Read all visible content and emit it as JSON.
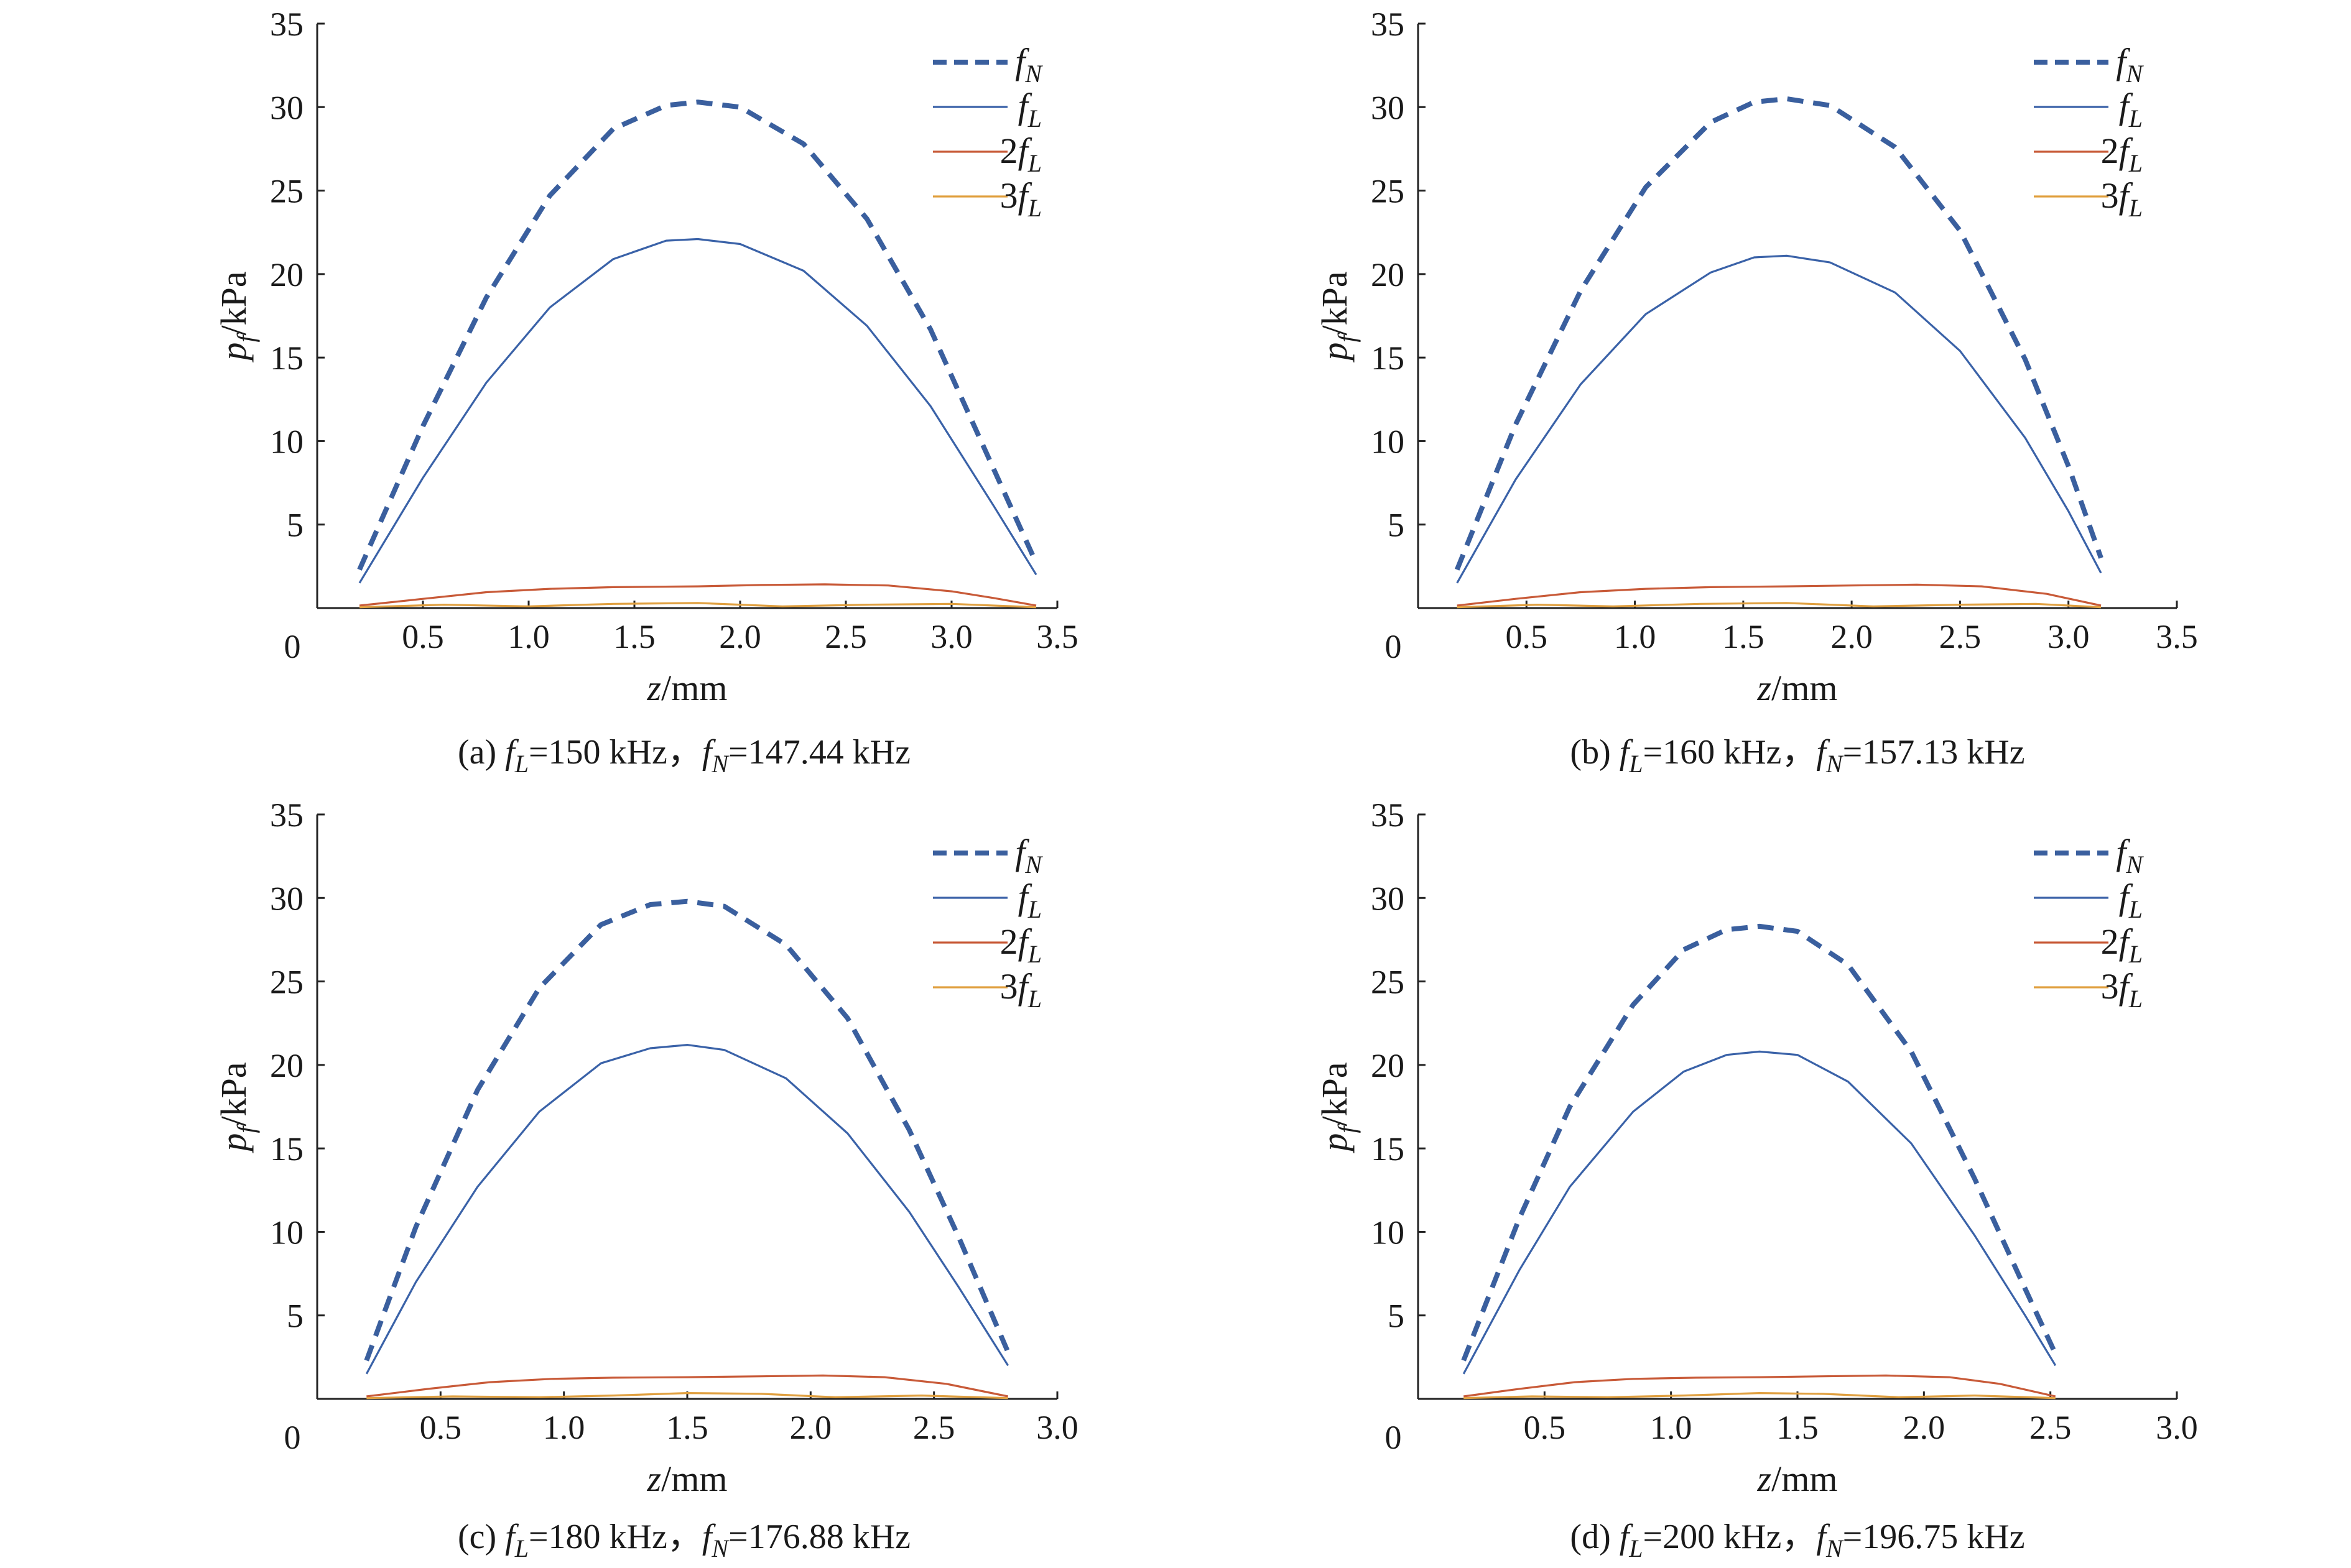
{
  "chart_data": [
    {
      "type": "line",
      "caption": "(a) f_L=150 kHz，f_N=147.44 kHz",
      "caption_parts": {
        "prefix": "(a) ",
        "fL_value": "=150 kHz，",
        "fN_value": "=147.44 kHz"
      },
      "ylabel": "p_f/kPa",
      "ylabel_parts": {
        "base": "p",
        "sub": "f",
        "unit": "/kPa"
      },
      "xlabel": "z/mm",
      "xlabel_parts": {
        "var": "z",
        "unit": "/mm"
      },
      "xlim": [
        0,
        3.5
      ],
      "ylim": [
        0,
        35
      ],
      "xticks": [
        "0.5",
        "1.0",
        "1.5",
        "2.0",
        "2.5",
        "3.0",
        "3.5"
      ],
      "yticks": [
        "5",
        "10",
        "15",
        "20",
        "25",
        "30",
        "35"
      ],
      "origin_label": "0",
      "legend": [
        "f_N",
        "f_L",
        "2f_L",
        "3f_L"
      ],
      "series": [
        {
          "name": "f_N",
          "style": "dashed",
          "color": "#3a5f9e",
          "x": [
            0.2,
            0.5,
            0.8,
            1.1,
            1.4,
            1.65,
            1.8,
            2.0,
            2.3,
            2.6,
            2.9,
            3.2,
            3.4
          ],
          "y": [
            2.3,
            10.9,
            18.6,
            24.7,
            28.7,
            30.1,
            30.3,
            30.0,
            27.8,
            23.3,
            16.7,
            8.3,
            2.7
          ]
        },
        {
          "name": "f_L",
          "style": "solid",
          "color": "#3a62a8",
          "x": [
            0.2,
            0.5,
            0.8,
            1.1,
            1.4,
            1.65,
            1.8,
            2.0,
            2.3,
            2.6,
            2.9,
            3.2,
            3.4
          ],
          "y": [
            1.5,
            7.8,
            13.5,
            18.0,
            20.9,
            22.0,
            22.1,
            21.8,
            20.2,
            16.9,
            12.1,
            6.1,
            2.0
          ]
        },
        {
          "name": "2f_L",
          "style": "solid",
          "color": "#c85a38",
          "x": [
            0.2,
            0.5,
            0.8,
            1.1,
            1.4,
            1.8,
            2.1,
            2.4,
            2.7,
            3.0,
            3.2,
            3.4
          ],
          "y": [
            0.15,
            0.55,
            0.95,
            1.15,
            1.25,
            1.3,
            1.38,
            1.42,
            1.35,
            1.0,
            0.6,
            0.15
          ]
        },
        {
          "name": "3f_L",
          "style": "solid",
          "color": "#e0a040",
          "x": [
            0.2,
            0.6,
            1.0,
            1.4,
            1.8,
            2.2,
            2.6,
            3.0,
            3.4
          ],
          "y": [
            0.05,
            0.2,
            0.1,
            0.25,
            0.3,
            0.1,
            0.2,
            0.25,
            0.05
          ]
        }
      ]
    },
    {
      "type": "line",
      "caption": "(b) f_L=160 kHz，f_N=157.13 kHz",
      "caption_parts": {
        "prefix": "(b) ",
        "fL_value": "=160 kHz，",
        "fN_value": "=157.13 kHz"
      },
      "ylabel": "p_f/kPa",
      "ylabel_parts": {
        "base": "p",
        "sub": "f",
        "unit": "/kPa"
      },
      "xlabel": "z/mm",
      "xlabel_parts": {
        "var": "z",
        "unit": "/mm"
      },
      "xlim": [
        0,
        3.5
      ],
      "ylim": [
        0,
        35
      ],
      "xticks": [
        "0.5",
        "1.0",
        "1.5",
        "2.0",
        "2.5",
        "3.0",
        "3.5"
      ],
      "yticks": [
        "5",
        "10",
        "15",
        "20",
        "25",
        "30",
        "35"
      ],
      "origin_label": "0",
      "legend": [
        "f_N",
        "f_L",
        "2f_L",
        "3f_L"
      ],
      "series": [
        {
          "name": "f_N",
          "style": "dashed",
          "color": "#3a5f9e",
          "x": [
            0.18,
            0.45,
            0.75,
            1.05,
            1.35,
            1.55,
            1.7,
            1.9,
            2.2,
            2.5,
            2.8,
            3.0,
            3.15
          ],
          "y": [
            2.3,
            11.0,
            19.0,
            25.2,
            29.1,
            30.3,
            30.5,
            30.1,
            27.6,
            22.6,
            14.9,
            8.5,
            3.0
          ]
        },
        {
          "name": "f_L",
          "style": "solid",
          "color": "#3a62a8",
          "x": [
            0.18,
            0.45,
            0.75,
            1.05,
            1.35,
            1.55,
            1.7,
            1.9,
            2.2,
            2.5,
            2.8,
            3.0,
            3.15
          ],
          "y": [
            1.5,
            7.7,
            13.4,
            17.6,
            20.1,
            21.0,
            21.1,
            20.7,
            18.9,
            15.4,
            10.2,
            5.8,
            2.1
          ]
        },
        {
          "name": "2f_L",
          "style": "solid",
          "color": "#c85a38",
          "x": [
            0.18,
            0.45,
            0.75,
            1.05,
            1.35,
            1.7,
            2.0,
            2.3,
            2.6,
            2.9,
            3.15
          ],
          "y": [
            0.15,
            0.55,
            0.95,
            1.15,
            1.25,
            1.3,
            1.35,
            1.4,
            1.3,
            0.85,
            0.15
          ]
        },
        {
          "name": "3f_L",
          "style": "solid",
          "color": "#e0a040",
          "x": [
            0.18,
            0.55,
            0.9,
            1.3,
            1.7,
            2.1,
            2.5,
            2.85,
            3.15
          ],
          "y": [
            0.05,
            0.2,
            0.1,
            0.25,
            0.3,
            0.1,
            0.2,
            0.25,
            0.05
          ]
        }
      ]
    },
    {
      "type": "line",
      "caption": "(c) f_L=180 kHz，f_N=176.88 kHz",
      "caption_parts": {
        "prefix": "(c) ",
        "fL_value": "=180 kHz，",
        "fN_value": "=176.88 kHz"
      },
      "ylabel": "p_f/kPa",
      "ylabel_parts": {
        "base": "p",
        "sub": "f",
        "unit": "/kPa"
      },
      "xlabel": "z/mm",
      "xlabel_parts": {
        "var": "z",
        "unit": "/mm"
      },
      "xlim": [
        0,
        3.0
      ],
      "ylim": [
        0,
        35
      ],
      "xticks": [
        "0.5",
        "1.0",
        "1.5",
        "2.0",
        "2.5",
        "3.0"
      ],
      "yticks": [
        "5",
        "10",
        "15",
        "20",
        "25",
        "30",
        "35"
      ],
      "origin_label": "0",
      "legend": [
        "f_N",
        "f_L",
        "2f_L",
        "3f_L"
      ],
      "series": [
        {
          "name": "f_N",
          "style": "dashed",
          "color": "#3a5f9e",
          "x": [
            0.2,
            0.4,
            0.65,
            0.9,
            1.15,
            1.35,
            1.5,
            1.65,
            1.9,
            2.15,
            2.4,
            2.6,
            2.8
          ],
          "y": [
            2.3,
            10.3,
            18.5,
            24.6,
            28.4,
            29.6,
            29.8,
            29.5,
            27.2,
            22.8,
            16.1,
            9.7,
            2.8
          ]
        },
        {
          "name": "f_L",
          "style": "solid",
          "color": "#3a62a8",
          "x": [
            0.2,
            0.4,
            0.65,
            0.9,
            1.15,
            1.35,
            1.5,
            1.65,
            1.9,
            2.15,
            2.4,
            2.6,
            2.8
          ],
          "y": [
            1.5,
            7.0,
            12.7,
            17.2,
            20.1,
            21.0,
            21.2,
            20.9,
            19.2,
            15.9,
            11.2,
            6.7,
            2.0
          ]
        },
        {
          "name": "2f_L",
          "style": "solid",
          "color": "#c85a38",
          "x": [
            0.2,
            0.45,
            0.7,
            0.95,
            1.2,
            1.5,
            1.8,
            2.05,
            2.3,
            2.55,
            2.8
          ],
          "y": [
            0.15,
            0.6,
            1.0,
            1.2,
            1.27,
            1.3,
            1.35,
            1.4,
            1.3,
            0.9,
            0.15
          ]
        },
        {
          "name": "3f_L",
          "style": "solid",
          "color": "#e0a040",
          "x": [
            0.2,
            0.55,
            0.9,
            1.2,
            1.5,
            1.8,
            2.1,
            2.45,
            2.8
          ],
          "y": [
            0.05,
            0.15,
            0.1,
            0.2,
            0.35,
            0.3,
            0.1,
            0.2,
            0.05
          ]
        }
      ]
    },
    {
      "type": "line",
      "caption": "(d) f_L=200 kHz，f_N=196.75 kHz",
      "caption_parts": {
        "prefix": "(d) ",
        "fL_value": "=200 kHz，",
        "fN_value": "=196.75 kHz"
      },
      "ylabel": "p_f/kPa",
      "ylabel_parts": {
        "base": "p",
        "sub": "f",
        "unit": "/kPa"
      },
      "xlabel": "z/mm",
      "xlabel_parts": {
        "var": "z",
        "unit": "/mm"
      },
      "xlim": [
        0,
        3.0
      ],
      "ylim": [
        0,
        35
      ],
      "xticks": [
        "0.5",
        "1.0",
        "1.5",
        "2.0",
        "2.5",
        "3.0"
      ],
      "yticks": [
        "5",
        "10",
        "15",
        "20",
        "25",
        "30",
        "35"
      ],
      "origin_label": "0",
      "legend": [
        "f_N",
        "f_L",
        "2f_L",
        "3f_L"
      ],
      "series": [
        {
          "name": "f_N",
          "style": "dashed",
          "color": "#3a5f9e",
          "x": [
            0.18,
            0.4,
            0.6,
            0.85,
            1.05,
            1.22,
            1.35,
            1.5,
            1.7,
            1.95,
            2.2,
            2.4,
            2.52
          ],
          "y": [
            2.3,
            10.8,
            17.5,
            23.6,
            26.9,
            28.1,
            28.3,
            28.0,
            26.0,
            20.8,
            13.2,
            6.6,
            2.7
          ]
        },
        {
          "name": "f_L",
          "style": "solid",
          "color": "#3a62a8",
          "x": [
            0.18,
            0.4,
            0.6,
            0.85,
            1.05,
            1.22,
            1.35,
            1.5,
            1.7,
            1.95,
            2.2,
            2.4,
            2.52
          ],
          "y": [
            1.5,
            7.7,
            12.7,
            17.2,
            19.6,
            20.6,
            20.8,
            20.6,
            19.0,
            15.3,
            9.8,
            5.0,
            2.0
          ]
        },
        {
          "name": "2f_L",
          "style": "solid",
          "color": "#c85a38",
          "x": [
            0.18,
            0.4,
            0.62,
            0.85,
            1.1,
            1.35,
            1.6,
            1.85,
            2.1,
            2.3,
            2.52
          ],
          "y": [
            0.15,
            0.6,
            1.0,
            1.2,
            1.27,
            1.3,
            1.35,
            1.4,
            1.3,
            0.9,
            0.15
          ]
        },
        {
          "name": "3f_L",
          "style": "solid",
          "color": "#e0a040",
          "x": [
            0.18,
            0.45,
            0.75,
            1.05,
            1.35,
            1.6,
            1.9,
            2.2,
            2.52
          ],
          "y": [
            0.05,
            0.15,
            0.1,
            0.2,
            0.35,
            0.3,
            0.1,
            0.2,
            0.05
          ]
        }
      ]
    }
  ]
}
